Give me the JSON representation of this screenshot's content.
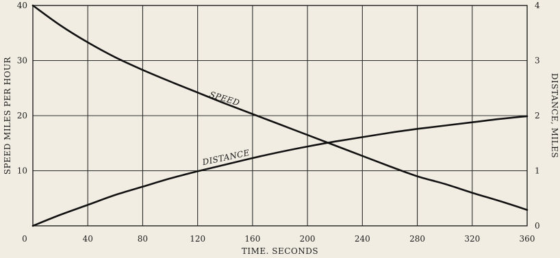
{
  "chart_data": {
    "type": "line",
    "xlabel": "TIME. SECONDS",
    "ylabel_left": "SPEED MILES PER HOUR",
    "ylabel_right": "DISTANCE, MILES",
    "xlim": [
      0,
      360
    ],
    "ylim_left": [
      0,
      40
    ],
    "ylim_right": [
      0,
      4
    ],
    "x_ticks": [
      0,
      40,
      80,
      120,
      160,
      200,
      240,
      280,
      320,
      360
    ],
    "y_left_ticks": [
      10,
      20,
      30,
      40
    ],
    "y_right_ticks": [
      0,
      1,
      2,
      3,
      4
    ],
    "grid": true,
    "series": [
      {
        "name": "SPEED",
        "axis": "left",
        "x": [
          0,
          20,
          40,
          60,
          80,
          100,
          120,
          140,
          160,
          180,
          200,
          220,
          240,
          260,
          280,
          300,
          320,
          340,
          360
        ],
        "values": [
          40,
          36.4,
          33.3,
          30.6,
          28.3,
          26.2,
          24.2,
          22.2,
          20.3,
          18.4,
          16.5,
          14.6,
          12.7,
          10.8,
          9.0,
          7.6,
          6.0,
          4.5,
          2.9
        ]
      },
      {
        "name": "DISTANCE",
        "axis": "right",
        "x": [
          0,
          20,
          40,
          60,
          80,
          100,
          120,
          140,
          160,
          180,
          200,
          220,
          240,
          260,
          280,
          300,
          320,
          340,
          360
        ],
        "values": [
          0,
          0.2,
          0.38,
          0.56,
          0.71,
          0.86,
          0.99,
          1.11,
          1.23,
          1.34,
          1.44,
          1.53,
          1.61,
          1.69,
          1.76,
          1.82,
          1.88,
          1.94,
          1.99
        ]
      }
    ]
  }
}
